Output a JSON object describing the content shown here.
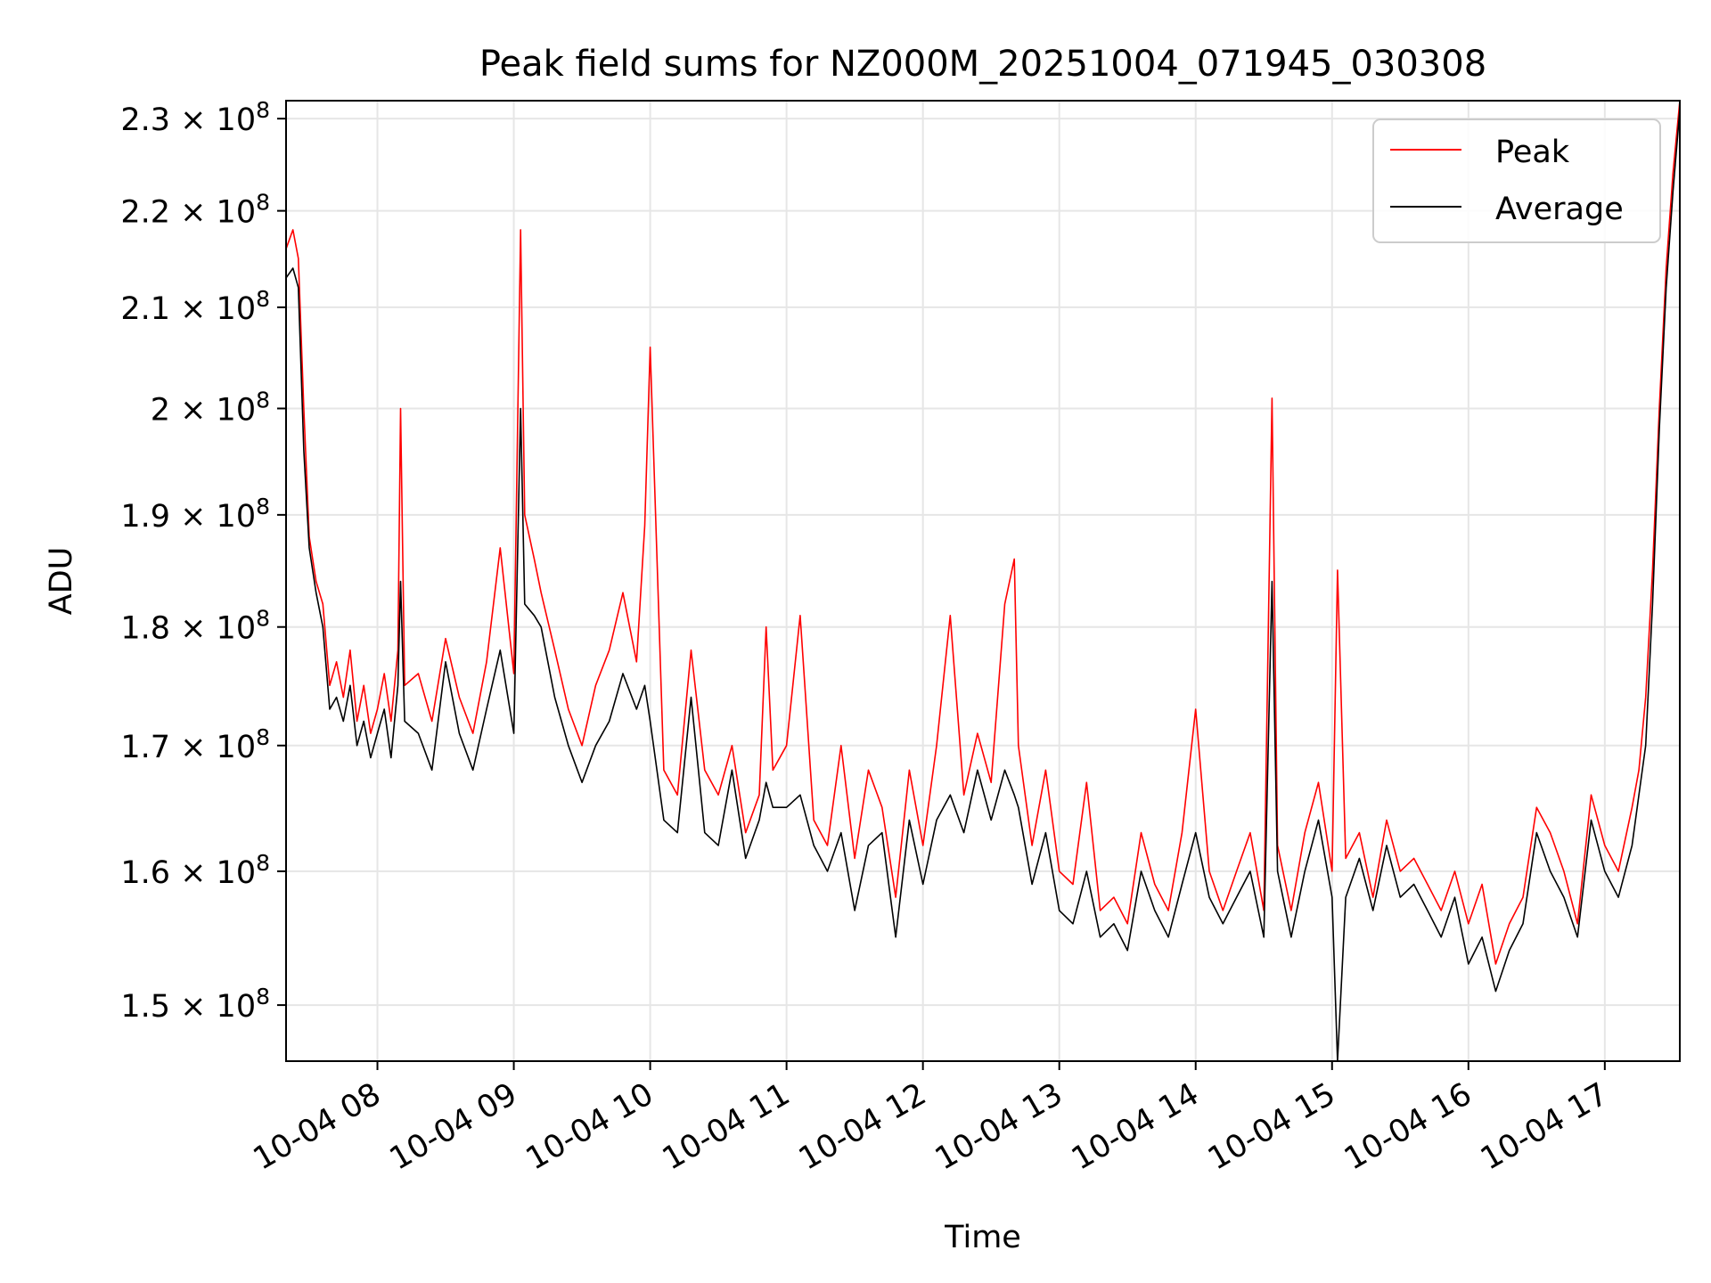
{
  "chart_data": {
    "type": "line",
    "title": "Peak field sums for NZ000M_20251004_071945_030308",
    "xlabel": "Time",
    "ylabel": "ADU",
    "y_scale": "log",
    "grid": true,
    "legend_position": "top-right",
    "xlim_hours": [
      7.33,
      17.55
    ],
    "ylim": [
      146000000,
      232000000
    ],
    "x_ticks": [
      {
        "hour": 8,
        "label": "10-04 08"
      },
      {
        "hour": 9,
        "label": "10-04 09"
      },
      {
        "hour": 10,
        "label": "10-04 10"
      },
      {
        "hour": 11,
        "label": "10-04 11"
      },
      {
        "hour": 12,
        "label": "10-04 12"
      },
      {
        "hour": 13,
        "label": "10-04 13"
      },
      {
        "hour": 14,
        "label": "10-04 14"
      },
      {
        "hour": 15,
        "label": "10-04 15"
      },
      {
        "hour": 16,
        "label": "10-04 16"
      },
      {
        "hour": 17,
        "label": "10-04 17"
      }
    ],
    "y_ticks": [
      {
        "value": 150000000,
        "mantissa": "1.5",
        "exponent": "8"
      },
      {
        "value": 160000000,
        "mantissa": "1.6",
        "exponent": "8"
      },
      {
        "value": 170000000,
        "mantissa": "1.7",
        "exponent": "8"
      },
      {
        "value": 180000000,
        "mantissa": "1.8",
        "exponent": "8"
      },
      {
        "value": 190000000,
        "mantissa": "1.9",
        "exponent": "8"
      },
      {
        "value": 200000000,
        "mantissa": "2",
        "exponent": "8"
      },
      {
        "value": 210000000,
        "mantissa": "2.1",
        "exponent": "8"
      },
      {
        "value": 220000000,
        "mantissa": "2.2",
        "exponent": "8"
      },
      {
        "value": 230000000,
        "mantissa": "2.3",
        "exponent": "8"
      }
    ],
    "series": [
      {
        "name": "Peak",
        "color": "#ff0000",
        "x_hours": [
          7.33,
          7.38,
          7.42,
          7.46,
          7.5,
          7.55,
          7.6,
          7.65,
          7.7,
          7.75,
          7.8,
          7.85,
          7.9,
          7.95,
          8.0,
          8.05,
          8.1,
          8.15,
          8.17,
          8.2,
          8.3,
          8.4,
          8.5,
          8.6,
          8.7,
          8.8,
          8.9,
          9.0,
          9.05,
          9.08,
          9.15,
          9.2,
          9.3,
          9.4,
          9.5,
          9.6,
          9.7,
          9.8,
          9.9,
          9.96,
          10.0,
          10.1,
          10.2,
          10.3,
          10.4,
          10.5,
          10.6,
          10.7,
          10.8,
          10.85,
          10.9,
          11.0,
          11.1,
          11.2,
          11.3,
          11.4,
          11.5,
          11.6,
          11.7,
          11.8,
          11.9,
          12.0,
          12.1,
          12.2,
          12.3,
          12.4,
          12.5,
          12.6,
          12.67,
          12.7,
          12.8,
          12.9,
          13.0,
          13.1,
          13.2,
          13.3,
          13.4,
          13.5,
          13.6,
          13.7,
          13.8,
          13.9,
          14.0,
          14.1,
          14.2,
          14.3,
          14.4,
          14.5,
          14.56,
          14.6,
          14.7,
          14.8,
          14.9,
          15.0,
          15.04,
          15.1,
          15.2,
          15.3,
          15.4,
          15.5,
          15.6,
          15.7,
          15.8,
          15.9,
          16.0,
          16.1,
          16.2,
          16.3,
          16.4,
          16.5,
          16.6,
          16.7,
          16.8,
          16.9,
          17.0,
          17.1,
          17.2,
          17.25,
          17.3,
          17.35,
          17.4,
          17.45,
          17.5,
          17.55
        ],
        "values": [
          216000000,
          218000000,
          215000000,
          200000000,
          188000000,
          184000000,
          182000000,
          175000000,
          177000000,
          174000000,
          178000000,
          172000000,
          175000000,
          171000000,
          173000000,
          176000000,
          172000000,
          178000000,
          200000000,
          175000000,
          176000000,
          172000000,
          179000000,
          174000000,
          171000000,
          177000000,
          187000000,
          176000000,
          218000000,
          190000000,
          186000000,
          183000000,
          178000000,
          173000000,
          170000000,
          175000000,
          178000000,
          183000000,
          177000000,
          189000000,
          206000000,
          168000000,
          166000000,
          178000000,
          168000000,
          166000000,
          170000000,
          163000000,
          166000000,
          180000000,
          168000000,
          170000000,
          181000000,
          164000000,
          162000000,
          170000000,
          161000000,
          168000000,
          165000000,
          158000000,
          168000000,
          162000000,
          170000000,
          181000000,
          166000000,
          171000000,
          167000000,
          182000000,
          186000000,
          170000000,
          162000000,
          168000000,
          160000000,
          159000000,
          167000000,
          157000000,
          158000000,
          156000000,
          163000000,
          159000000,
          157000000,
          163000000,
          173000000,
          160000000,
          157000000,
          160000000,
          163000000,
          157000000,
          201000000,
          162000000,
          157000000,
          163000000,
          167000000,
          160000000,
          185000000,
          161000000,
          163000000,
          158000000,
          164000000,
          160000000,
          161000000,
          159000000,
          157000000,
          160000000,
          156000000,
          159000000,
          153000000,
          156000000,
          158000000,
          165000000,
          163000000,
          160000000,
          156000000,
          166000000,
          162000000,
          160000000,
          165000000,
          168000000,
          174000000,
          185000000,
          200000000,
          214000000,
          224000000,
          232000000
        ]
      },
      {
        "name": "Average",
        "color": "#000000",
        "x_hours": [
          7.33,
          7.38,
          7.42,
          7.46,
          7.5,
          7.55,
          7.6,
          7.65,
          7.7,
          7.75,
          7.8,
          7.85,
          7.9,
          7.95,
          8.0,
          8.05,
          8.1,
          8.15,
          8.17,
          8.2,
          8.3,
          8.4,
          8.5,
          8.6,
          8.7,
          8.8,
          8.9,
          9.0,
          9.05,
          9.08,
          9.15,
          9.2,
          9.3,
          9.4,
          9.5,
          9.6,
          9.7,
          9.8,
          9.9,
          9.96,
          10.0,
          10.1,
          10.2,
          10.3,
          10.4,
          10.5,
          10.6,
          10.7,
          10.8,
          10.85,
          10.9,
          11.0,
          11.1,
          11.2,
          11.3,
          11.4,
          11.5,
          11.6,
          11.7,
          11.8,
          11.9,
          12.0,
          12.1,
          12.2,
          12.3,
          12.4,
          12.5,
          12.6,
          12.67,
          12.7,
          12.8,
          12.9,
          13.0,
          13.1,
          13.2,
          13.3,
          13.4,
          13.5,
          13.6,
          13.7,
          13.8,
          13.9,
          14.0,
          14.1,
          14.2,
          14.3,
          14.4,
          14.5,
          14.56,
          14.6,
          14.7,
          14.8,
          14.9,
          15.0,
          15.04,
          15.1,
          15.2,
          15.3,
          15.4,
          15.5,
          15.6,
          15.7,
          15.8,
          15.9,
          16.0,
          16.1,
          16.2,
          16.3,
          16.4,
          16.5,
          16.6,
          16.7,
          16.8,
          16.9,
          17.0,
          17.1,
          17.2,
          17.25,
          17.3,
          17.35,
          17.4,
          17.45,
          17.5,
          17.55
        ],
        "values": [
          213000000,
          214000000,
          212000000,
          196000000,
          187000000,
          183000000,
          180000000,
          173000000,
          174000000,
          172000000,
          175000000,
          170000000,
          172000000,
          169000000,
          171000000,
          173000000,
          169000000,
          175000000,
          184000000,
          172000000,
          171000000,
          168000000,
          177000000,
          171000000,
          168000000,
          173000000,
          178000000,
          171000000,
          200000000,
          182000000,
          181000000,
          180000000,
          174000000,
          170000000,
          167000000,
          170000000,
          172000000,
          176000000,
          173000000,
          175000000,
          172000000,
          164000000,
          163000000,
          174000000,
          163000000,
          162000000,
          168000000,
          161000000,
          164000000,
          167000000,
          165000000,
          165000000,
          166000000,
          162000000,
          160000000,
          163000000,
          157000000,
          162000000,
          163000000,
          155000000,
          164000000,
          159000000,
          164000000,
          166000000,
          163000000,
          168000000,
          164000000,
          168000000,
          166000000,
          165000000,
          159000000,
          163000000,
          157000000,
          156000000,
          160000000,
          155000000,
          156000000,
          154000000,
          160000000,
          157000000,
          155000000,
          159000000,
          163000000,
          158000000,
          156000000,
          158000000,
          160000000,
          155000000,
          184000000,
          160000000,
          155000000,
          160000000,
          164000000,
          158000000,
          146000000,
          158000000,
          161000000,
          157000000,
          162000000,
          158000000,
          159000000,
          157000000,
          155000000,
          158000000,
          153000000,
          155000000,
          151000000,
          154000000,
          156000000,
          163000000,
          160000000,
          158000000,
          155000000,
          164000000,
          160000000,
          158000000,
          162000000,
          166000000,
          170000000,
          182000000,
          198000000,
          212000000,
          222000000,
          231000000
        ]
      }
    ]
  }
}
